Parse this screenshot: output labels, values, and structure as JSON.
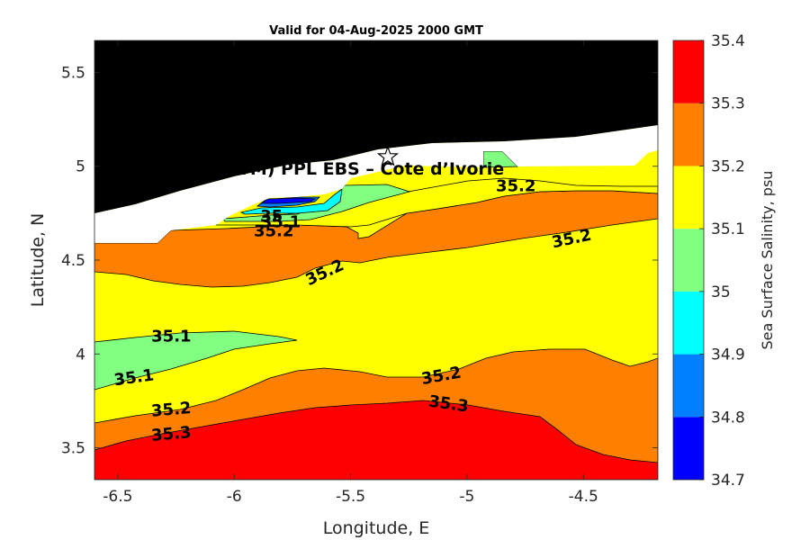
{
  "chart_data": {
    "type": "contour",
    "title": "Valid for 04-Aug-2025 2000 GMT",
    "xlabel": "Longitude, E",
    "ylabel": "Latitude, N",
    "xlim": [
      -6.6,
      -4.18
    ],
    "ylim": [
      3.33,
      5.67
    ],
    "xticks": [
      "-6.5",
      "-6",
      "-5.5",
      "-5",
      "-4.5"
    ],
    "xtick_values": [
      -6.5,
      -6,
      -5.5,
      -5,
      -4.5
    ],
    "yticks": [
      "3.5",
      "4",
      "4.5",
      "5",
      "5.5"
    ],
    "ytick_values": [
      3.5,
      4,
      4.5,
      5,
      5.5
    ],
    "annotation": "PPA (ONHYM) PPL EBS  – Cote d’Ivorie",
    "site_marker": {
      "symbol": "star",
      "lon": -5.34,
      "lat": 5.05
    },
    "colorbar": {
      "label": "Sea Surface Salinity, psu",
      "levels": [
        34.7,
        34.8,
        34.9,
        35,
        35.1,
        35.2,
        35.3,
        35.4
      ],
      "tick_labels": [
        "34.7",
        "34.8",
        "34.9",
        "35",
        "35.1",
        "35.2",
        "35.3",
        "35.4"
      ],
      "colors": [
        "#0000ff",
        "#0080ff",
        "#00ffff",
        "#80ff80",
        "#ffff00",
        "#ff8000",
        "#ff0000"
      ]
    },
    "regions": [
      {
        "name": "land",
        "color": "#000000"
      },
      {
        "name": "no-data",
        "color": "#ffffff"
      },
      {
        "name": "35.3-35.4",
        "color": "#ff0000"
      },
      {
        "name": "35.2-35.3",
        "color": "#ff8000"
      },
      {
        "name": "35.1-35.2",
        "color": "#ffff00"
      },
      {
        "name": "35.0-35.1",
        "color": "#80ff80"
      },
      {
        "name": "34.9-35.0",
        "color": "#00ffff"
      },
      {
        "name": "34.8-34.9",
        "color": "#0080ff"
      },
      {
        "name": "34.7-34.8",
        "color": "#0000ff"
      }
    ],
    "contour_labels": [
      {
        "text": "35.1",
        "lon": -6.27,
        "lat": 4.09,
        "angle": 0
      },
      {
        "text": "35.1",
        "lon": -6.43,
        "lat": 3.87,
        "angle": -8
      },
      {
        "text": "35.2",
        "lon": -6.27,
        "lat": 3.7,
        "angle": -5
      },
      {
        "text": "35.3",
        "lon": -6.27,
        "lat": 3.57,
        "angle": -5
      },
      {
        "text": "35.2",
        "lon": -5.61,
        "lat": 4.43,
        "angle": -25
      },
      {
        "text": "35.1",
        "lon": -5.8,
        "lat": 4.7,
        "angle": 0
      },
      {
        "text": "35",
        "lon": -5.84,
        "lat": 4.73,
        "angle": 0
      },
      {
        "text": "35.2",
        "lon": -5.83,
        "lat": 4.65,
        "angle": 0
      },
      {
        "text": "35.2",
        "lon": -4.79,
        "lat": 4.89,
        "angle": 0
      },
      {
        "text": "35.2",
        "lon": -4.55,
        "lat": 4.61,
        "angle": -12
      },
      {
        "text": "35.2",
        "lon": -5.11,
        "lat": 3.88,
        "angle": -10
      },
      {
        "text": "35.3",
        "lon": -5.08,
        "lat": 3.73,
        "angle": 8
      }
    ]
  }
}
